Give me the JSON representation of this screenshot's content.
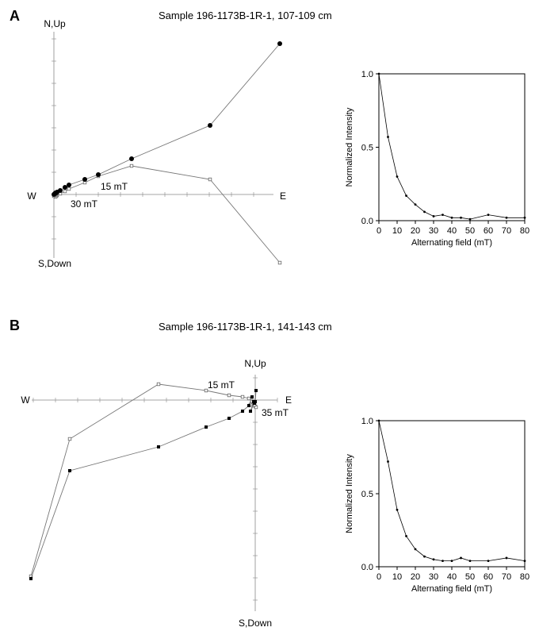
{
  "panels": [
    {
      "label": "A",
      "title": "Sample 196-1173B-1R-1, 107-109 cm",
      "zijderveld": {
        "axis_labels": {
          "north": "N,Up",
          "south": "S,Down",
          "west": "W",
          "east": "E"
        },
        "annotations": [
          "15 mT",
          "30 mT"
        ],
        "horizontal_series_marker": "filled-circle",
        "vertical_series_marker": "open-square",
        "horizontal_projection": [
          [
            285,
            190
          ],
          [
            197,
            87
          ],
          [
            98,
            45
          ],
          [
            56,
            25
          ],
          [
            39,
            19
          ],
          [
            19,
            12
          ],
          [
            14,
            9
          ],
          [
            8,
            5
          ],
          [
            4,
            3
          ],
          [
            3,
            2
          ],
          [
            2,
            2
          ],
          [
            1,
            1
          ],
          [
            0,
            0
          ]
        ],
        "vertical_projection": [
          [
            285,
            -86
          ],
          [
            197,
            19
          ],
          [
            98,
            36
          ],
          [
            56,
            23
          ],
          [
            39,
            15
          ],
          [
            19,
            7
          ],
          [
            14,
            4
          ],
          [
            8,
            1
          ],
          [
            4,
            -1
          ],
          [
            3,
            -2
          ],
          [
            2,
            -3
          ],
          [
            1,
            -1
          ],
          [
            0,
            -2
          ]
        ]
      },
      "chart_data": {
        "type": "line",
        "xlabel": "Alternating field (mT)",
        "ylabel": "Normalized Intensity",
        "xlim": [
          0,
          80
        ],
        "ylim": [
          0,
          1
        ],
        "xticks": [
          "0",
          "10",
          "20",
          "30",
          "40",
          "50",
          "60",
          "70",
          "80"
        ],
        "yticks": [
          "0.0",
          "0.5",
          "1.0"
        ],
        "x": [
          0,
          5,
          10,
          15,
          20,
          25,
          30,
          35,
          40,
          45,
          50,
          60,
          70,
          80
        ],
        "y": [
          1.0,
          0.57,
          0.3,
          0.17,
          0.11,
          0.06,
          0.03,
          0.04,
          0.02,
          0.02,
          0.01,
          0.04,
          0.02,
          0.02
        ]
      }
    },
    {
      "label": "B",
      "title": "Sample 196-1173B-1R-1, 141-143 cm",
      "zijderveld": {
        "axis_labels": {
          "north": "N,Up",
          "south": "S,Down",
          "west": "W",
          "east": "E"
        },
        "annotations": [
          "15 mT",
          "35 mT"
        ],
        "horizontal_series_marker": "filled-square",
        "vertical_series_marker": "open-square",
        "horizontal_projection": [
          [
            -283,
            -225
          ],
          [
            -234,
            -89
          ],
          [
            -122,
            -59
          ],
          [
            -62,
            -34
          ],
          [
            -33,
            -23
          ],
          [
            -16,
            -14
          ],
          [
            -8,
            -7
          ],
          [
            -4,
            4
          ],
          [
            -2,
            -2
          ],
          [
            -6,
            -14
          ],
          [
            0,
            -2
          ],
          [
            1,
            12
          ],
          [
            -1,
            -4
          ]
        ],
        "vertical_projection": [
          [
            -283,
            -222
          ],
          [
            -234,
            -49
          ],
          [
            -122,
            20
          ],
          [
            -62,
            12
          ],
          [
            -33,
            6
          ],
          [
            -16,
            4
          ],
          [
            -8,
            2
          ],
          [
            -4,
            -2
          ],
          [
            -2,
            -4
          ],
          [
            -6,
            -6
          ],
          [
            0,
            -8
          ],
          [
            1,
            -9
          ],
          [
            -1,
            -6
          ]
        ]
      },
      "chart_data": {
        "type": "line",
        "xlabel": "Alternating field (mT)",
        "ylabel": "Normalized Intensity",
        "xlim": [
          0,
          80
        ],
        "ylim": [
          0,
          1
        ],
        "xticks": [
          "0",
          "10",
          "20",
          "30",
          "40",
          "50",
          "60",
          "70",
          "80"
        ],
        "yticks": [
          "0.0",
          "0.5",
          "1.0"
        ],
        "x": [
          0,
          5,
          10,
          15,
          20,
          25,
          30,
          35,
          40,
          45,
          50,
          60,
          70,
          80
        ],
        "y": [
          1.0,
          0.72,
          0.39,
          0.21,
          0.12,
          0.07,
          0.05,
          0.04,
          0.04,
          0.06,
          0.04,
          0.04,
          0.06,
          0.04
        ]
      }
    }
  ]
}
